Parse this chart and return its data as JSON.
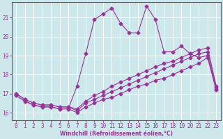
{
  "xlabel": "Windchill (Refroidissement éolien,°C)",
  "background_color": "#cce8ea",
  "grid_color": "#b0d8dc",
  "line_color": "#993399",
  "xlim": [
    -0.5,
    23.5
  ],
  "ylim": [
    15.6,
    21.8
  ],
  "yticks": [
    16,
    17,
    18,
    19,
    20,
    21
  ],
  "xticks": [
    0,
    1,
    2,
    3,
    4,
    5,
    6,
    7,
    8,
    9,
    10,
    11,
    12,
    13,
    14,
    15,
    16,
    17,
    18,
    19,
    20,
    21,
    22,
    23
  ],
  "s1_x": [
    0,
    1,
    2,
    3,
    4,
    5,
    6,
    7,
    8,
    9,
    10,
    11,
    12,
    13,
    14,
    15,
    16,
    17,
    18,
    19,
    20,
    21,
    22,
    23
  ],
  "s1_y": [
    16.9,
    16.6,
    16.4,
    16.3,
    16.3,
    16.2,
    16.2,
    16.0,
    16.3,
    16.5,
    16.7,
    16.8,
    17.0,
    17.2,
    17.4,
    17.5,
    17.7,
    17.8,
    18.0,
    18.2,
    18.4,
    18.6,
    18.9,
    17.2
  ],
  "s2_x": [
    0,
    1,
    2,
    3,
    4,
    5,
    6,
    7,
    8,
    9,
    10,
    11,
    12,
    13,
    14,
    15,
    16,
    17,
    18,
    19,
    20,
    21,
    22,
    23
  ],
  "s2_y": [
    17.0,
    16.7,
    16.5,
    16.4,
    16.4,
    16.3,
    16.3,
    16.1,
    16.5,
    16.7,
    16.9,
    17.1,
    17.3,
    17.5,
    17.7,
    17.9,
    18.1,
    18.3,
    18.5,
    18.7,
    18.9,
    19.1,
    19.2,
    17.3
  ],
  "s3_x": [
    0,
    1,
    2,
    3,
    4,
    5,
    6,
    7,
    8,
    9,
    10,
    11,
    12,
    13,
    14,
    15,
    16,
    17,
    18,
    19,
    20,
    21,
    22,
    23
  ],
  "s3_y": [
    17.0,
    16.7,
    16.5,
    16.4,
    16.4,
    16.3,
    16.3,
    16.2,
    16.6,
    16.9,
    17.1,
    17.4,
    17.6,
    17.8,
    18.0,
    18.2,
    18.4,
    18.6,
    18.7,
    18.9,
    19.1,
    19.3,
    19.4,
    17.4
  ],
  "s4_x": [
    0,
    1,
    2,
    3,
    4,
    5,
    6,
    7,
    8,
    9,
    10,
    11,
    12,
    13,
    14,
    15,
    16,
    17,
    18,
    19,
    20,
    21,
    22,
    23
  ],
  "s4_y": [
    16.9,
    16.6,
    16.4,
    16.3,
    16.3,
    16.2,
    16.2,
    17.4,
    19.1,
    20.9,
    21.2,
    21.5,
    20.7,
    20.2,
    20.2,
    21.6,
    20.9,
    19.2,
    19.2,
    19.5,
    19.1,
    18.9,
    19.0,
    17.2
  ]
}
